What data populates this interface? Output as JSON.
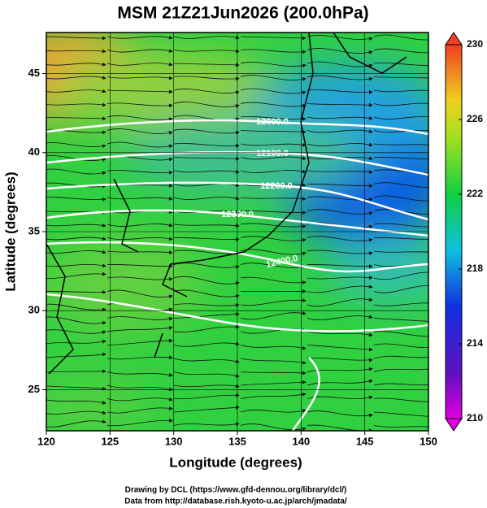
{
  "title": "MSM 21Z21Jun2026 (200.0hPa)",
  "x_axis": {
    "label": "Longitude (degrees)",
    "lim": [
      120,
      150
    ],
    "ticks": [
      120,
      125,
      130,
      135,
      140,
      145,
      150
    ]
  },
  "y_axis": {
    "label": "Latitude  (degrees)",
    "lim": [
      22.4,
      47.6
    ],
    "ticks": [
      25,
      30,
      35,
      40,
      45
    ]
  },
  "colorbar": {
    "lim": [
      210,
      230
    ],
    "ticks": [
      210,
      214,
      218,
      222,
      226,
      230
    ]
  },
  "contours": [
    {
      "label": "12000.0"
    },
    {
      "label": "12100.0"
    },
    {
      "label": "12200.0"
    },
    {
      "label": "12300.0"
    },
    {
      "label": "12400.0"
    }
  ],
  "credits": [
    "Drawing by DCL (https://www.gfd-dennou.org/library/dcl/)",
    "Data from http://database.rish.kyoto-u.ac.jp/arch/jmadata/"
  ]
}
